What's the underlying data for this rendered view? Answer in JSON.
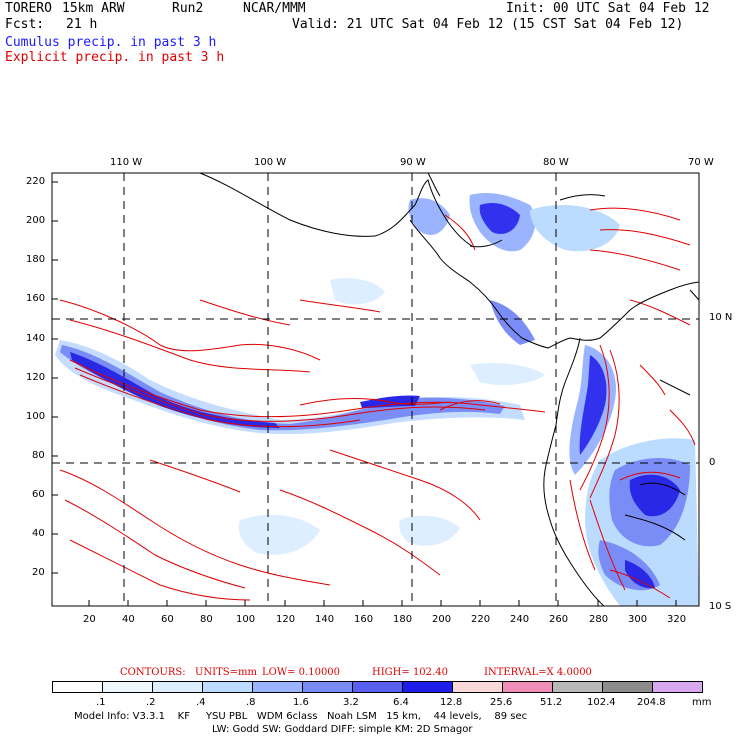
{
  "header": {
    "model": "TORERO",
    "resolution": "15km ARW",
    "run": "Run2",
    "org": "NCAR/MMM",
    "init": "Init: 00 UTC Sat 04 Feb 12",
    "fcst_label": "Fcst:",
    "fcst_value": "21 h",
    "valid": "Valid: 21 UTC Sat 04 Feb 12 (15 CST Sat 04 Feb 12)",
    "field1": "Cumulus precip. in past 3 h",
    "field2": "Explicit precip. in past 3 h"
  },
  "map": {
    "top_labels": [
      "110 W",
      "100 W",
      "90 W",
      "80 W",
      "70 W"
    ],
    "right_labels": [
      "10 N",
      "0",
      "10 S"
    ],
    "left_ticks": [
      "220",
      "200",
      "180",
      "160",
      "140",
      "120",
      "100",
      "80",
      "60",
      "40",
      "20"
    ],
    "bottom_ticks": [
      "20",
      "40",
      "60",
      "80",
      "100",
      "120",
      "140",
      "160",
      "180",
      "200",
      "220",
      "240",
      "260",
      "280",
      "300",
      "320"
    ]
  },
  "contours": {
    "label": "CONTOURS:",
    "units": "UNITS=mm",
    "low": "LOW= 0.10000",
    "high": "HIGH= 102.40",
    "interval": "INTERVAL=X 4.0000"
  },
  "colorbar": {
    "labels": [
      ".1",
      ".2",
      ".4",
      ".8",
      "1.6",
      "3.2",
      "6.4",
      "12.8",
      "25.6",
      "51.2",
      "102.4",
      "204.8"
    ],
    "units": "mm",
    "colors": [
      "#ffffff",
      "#f0f8ff",
      "#dceeff",
      "#bcdcff",
      "#9ab4ff",
      "#7a8cf6",
      "#5a60f0",
      "#1e1eea",
      "#f8d8d8",
      "#f090b8",
      "#b8b8b8",
      "#8c8c8c",
      "#d8a8f0"
    ]
  },
  "footer": {
    "line1": "Model Info: V3.3.1    KF     YSU PBL   WDM 6class   Noah LSM   15 km,    44 levels,    89 sec",
    "line2": "LW: Godd SW: Goddard DIFF: simple KM: 2D Smagor"
  }
}
